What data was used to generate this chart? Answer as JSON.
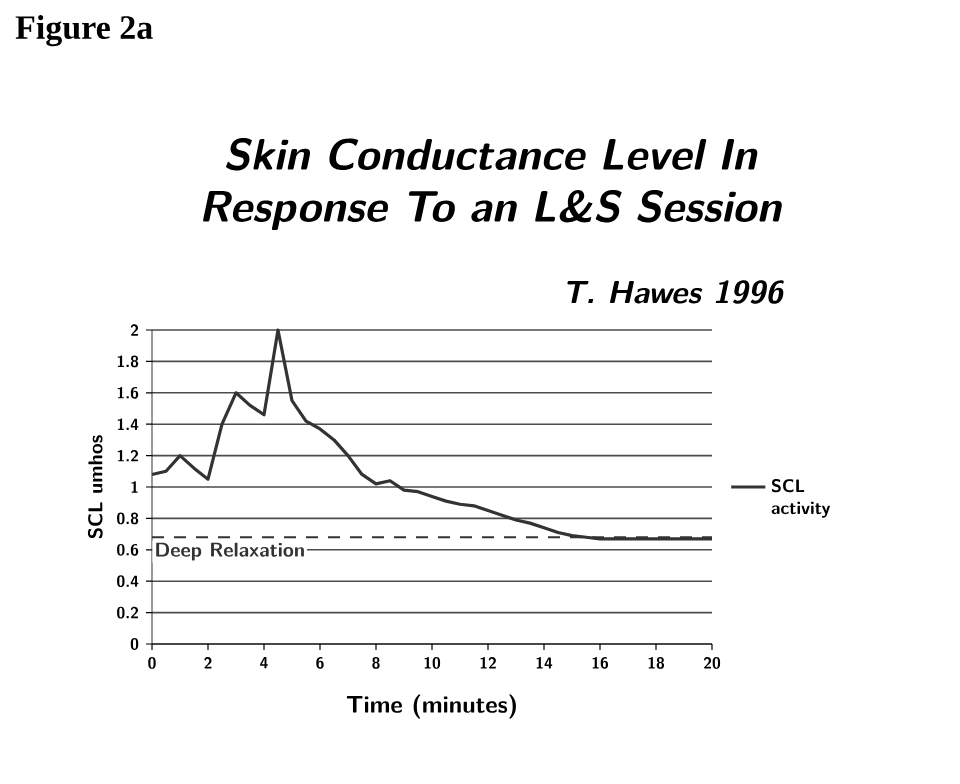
{
  "chart_data": {
    "type": "line",
    "title": "Skin Conductance Level In Response To an L&S Session",
    "subtitle": "T. Hawes   1996",
    "xlabel": "Time   (minutes)",
    "ylabel": "SCL umhos",
    "annotations": [
      "Figure 2a"
    ],
    "x": [
      0,
      0.5,
      1,
      1.5,
      2,
      2.5,
      3,
      3.5,
      4,
      4.5,
      5,
      5.5,
      6,
      6.5,
      7,
      7.5,
      8,
      8.5,
      9,
      9.5,
      10,
      10.5,
      11,
      11.5,
      12,
      12.5,
      13,
      13.5,
      14,
      14.5,
      15,
      15.5,
      16,
      16.5,
      17,
      17.5,
      18,
      18.5,
      19,
      19.5,
      20
    ],
    "series": [
      {
        "name": "SCL activity",
        "color": "#333333",
        "values": [
          1.08,
          1.1,
          1.2,
          1.12,
          1.05,
          1.4,
          1.6,
          1.52,
          1.46,
          2.0,
          1.55,
          1.42,
          1.37,
          1.3,
          1.2,
          1.08,
          1.02,
          1.04,
          0.98,
          0.97,
          0.94,
          0.91,
          0.89,
          0.88,
          0.85,
          0.82,
          0.79,
          0.77,
          0.74,
          0.71,
          0.69,
          0.68,
          0.67,
          0.67,
          0.67,
          0.67,
          0.67,
          0.67,
          0.67,
          0.67,
          0.67
        ]
      }
    ],
    "xlim": [
      0,
      20
    ],
    "xticks": [
      0,
      2,
      4,
      6,
      8,
      10,
      12,
      14,
      16,
      18,
      20
    ],
    "ylim": [
      0,
      2
    ],
    "yticks": [
      0,
      0.2,
      0.4,
      0.6,
      0.8,
      1,
      1.2,
      1.4,
      1.6,
      1.8,
      2
    ],
    "grid": "y",
    "legend": "right",
    "marker": "none",
    "line_style": "solid",
    "ref_lines": [
      {
        "axis": "y",
        "value": 0.68,
        "label": "Deep Relaxation",
        "color": "#333333",
        "line_style": "dashed"
      }
    ]
  }
}
